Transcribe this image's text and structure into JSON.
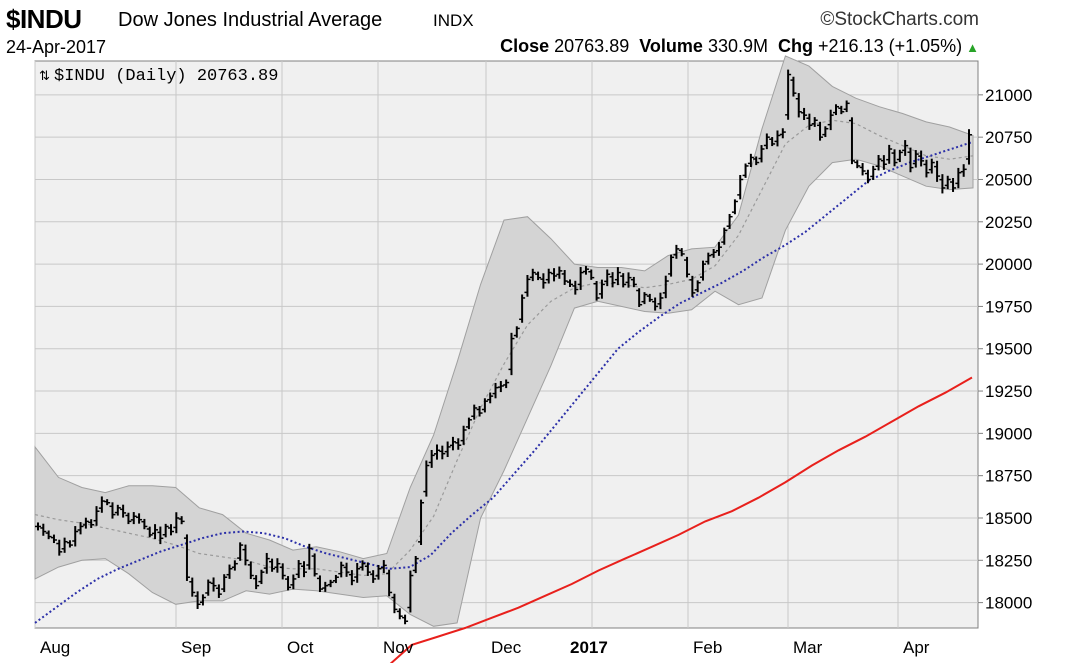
{
  "header": {
    "symbol": "$INDU",
    "name": "Dow Jones Industrial Average",
    "exchange": "INDX",
    "credit": "©StockCharts.com",
    "date": "24-Apr-2017",
    "close_label": "Close",
    "close_value": "20763.89",
    "volume_label": "Volume",
    "volume_value": "330.9M",
    "chg_label": "Chg",
    "chg_value": "+216.13 (+1.05%)",
    "chg_icon": "up-triangle-icon"
  },
  "chart_data": {
    "type": "ohlc",
    "legend": "$INDU (Daily) 20763.89",
    "legend_placement": "top-left",
    "ylim": [
      17850,
      21200
    ],
    "y_ticks": [
      18000,
      18250,
      18500,
      18750,
      19000,
      19250,
      19500,
      19750,
      20000,
      20250,
      20500,
      20750,
      21000
    ],
    "x_tick_labels": [
      "Aug",
      "Sep",
      "Oct",
      "Nov",
      "Dec",
      "2017",
      "Feb",
      "Mar",
      "Apr"
    ],
    "grid": true,
    "colors": {
      "price_bars": "#000000",
      "bollinger_band_fill": "#d4d4d4",
      "ma_50": "#2b2fa8",
      "ma_200": "#e8201c",
      "band_middle": "#9a9a9a",
      "plot_background": "#f0f0f0"
    },
    "price_closes": [
      18450,
      18420,
      18390,
      18370,
      18300,
      18360,
      18340,
      18420,
      18450,
      18480,
      18460,
      18540,
      18600,
      18590,
      18520,
      18560,
      18530,
      18480,
      18510,
      18490,
      18450,
      18400,
      18430,
      18380,
      18450,
      18420,
      18500,
      18480,
      18150,
      18060,
      17990,
      18030,
      18120,
      18100,
      18050,
      18150,
      18200,
      18230,
      18340,
      18250,
      18160,
      18100,
      18180,
      18260,
      18200,
      18230,
      18160,
      18090,
      18140,
      18230,
      18180,
      18320,
      18170,
      18080,
      18100,
      18120,
      18150,
      18220,
      18180,
      18130,
      18200,
      18230,
      18180,
      18140,
      18200,
      18220,
      18060,
      17960,
      17920,
      17890,
      18160,
      18260,
      18590,
      18810,
      18870,
      18900,
      18880,
      18920,
      18950,
      18930,
      19020,
      19080,
      19150,
      19120,
      19190,
      19220,
      19270,
      19280,
      19300,
      19560,
      19620,
      19800,
      19910,
      19950,
      19920,
      19890,
      19950,
      19930,
      19960,
      19900,
      19880,
      19850,
      19950,
      19970,
      19920,
      19800,
      19880,
      19940,
      19890,
      19950,
      19880,
      19920,
      19880,
      19760,
      19820,
      19790,
      19750,
      19800,
      19900,
      20040,
      20090,
      20060,
      19940,
      19830,
      19890,
      20000,
      20050,
      20070,
      20100,
      20200,
      20280,
      20370,
      20500,
      20580,
      20630,
      20600,
      20680,
      20750,
      20710,
      20760,
      20780,
      21120,
      21010,
      20900,
      20880,
      20820,
      20850,
      20750,
      20800,
      20880,
      20930,
      20900,
      20950,
      20610,
      20580,
      20550,
      20500,
      20560,
      20620,
      20590,
      20680,
      20600,
      20660,
      20700,
      20570,
      20650,
      20610,
      20540,
      20600,
      20520,
      20450,
      20500,
      20450,
      20540,
      20560,
      20764
    ],
    "ma_50": [
      17880,
      17970,
      18060,
      18140,
      18200,
      18250,
      18300,
      18340,
      18380,
      18410,
      18420,
      18410,
      18380,
      18330,
      18290,
      18260,
      18230,
      18200,
      18210,
      18280,
      18410,
      18520,
      18620,
      18760,
      18900,
      19050,
      19200,
      19350,
      19500,
      19600,
      19690,
      19770,
      19830,
      19890,
      19960,
      20040,
      20110,
      20190,
      20290,
      20390,
      20490,
      20550,
      20600,
      20640,
      20680,
      20720
    ],
    "ma_200": [
      17610,
      17750,
      17800,
      17850,
      17910,
      17970,
      18040,
      18110,
      18190,
      18260,
      18330,
      18400,
      18480,
      18540,
      18620,
      18710,
      18810,
      18900,
      18980,
      19070,
      19160,
      19240,
      19330
    ],
    "bb_middle": [
      18520,
      18490,
      18470,
      18440,
      18410,
      18380,
      18340,
      18290,
      18270,
      18250,
      18210,
      18200,
      18200,
      18180,
      18160,
      18170,
      18310,
      18510,
      18840,
      19150,
      19410,
      19640,
      19780,
      19860,
      19890,
      19880,
      19860,
      19880,
      19910,
      19990,
      20170,
      20440,
      20710,
      20820,
      20850,
      20830,
      20760,
      20700,
      20640,
      20620,
      20640
    ],
    "bb_upper": [
      18920,
      18740,
      18680,
      18650,
      18690,
      18690,
      18680,
      18560,
      18520,
      18410,
      18370,
      18310,
      18330,
      18300,
      18260,
      18290,
      18680,
      18990,
      19420,
      19880,
      20260,
      20280,
      20150,
      20000,
      19980,
      19980,
      19960,
      20050,
      20090,
      20100,
      20290,
      20800,
      21230,
      21170,
      21050,
      20980,
      20930,
      20890,
      20840,
      20810,
      20760
    ],
    "bb_lower": [
      18140,
      18210,
      18250,
      18260,
      18170,
      18060,
      17990,
      18010,
      18010,
      18070,
      18050,
      18080,
      18070,
      18050,
      18030,
      18040,
      17930,
      17860,
      17880,
      18500,
      18780,
      19090,
      19400,
      19740,
      19780,
      19750,
      19720,
      19710,
      19730,
      19840,
      19760,
      19800,
      20200,
      20460,
      20600,
      20620,
      20580,
      20520,
      20460,
      20440,
      20450
    ]
  }
}
